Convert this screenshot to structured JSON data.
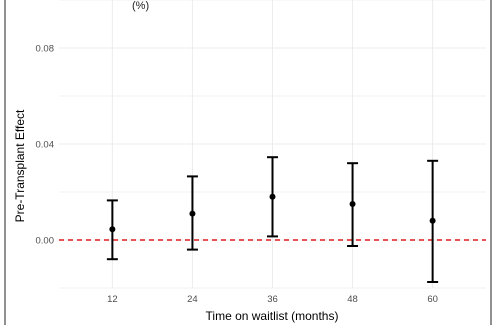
{
  "top_fragment": "(%)",
  "chart_data": {
    "type": "errorbar",
    "title": "",
    "xlabel": "Time on waitlist (months)",
    "ylabel": "Pre-Transplant Effect",
    "x": [
      12,
      24,
      36,
      48,
      60
    ],
    "xtick_labels": [
      "12",
      "24",
      "36",
      "48",
      "60"
    ],
    "xlim": [
      4,
      68
    ],
    "ylim": [
      -0.02,
      0.1
    ],
    "yticks": [
      0.0,
      0.04,
      0.08
    ],
    "ytick_labels": [
      "0.00",
      "0.04",
      "0.08"
    ],
    "series": [
      {
        "estimate": [
          0.0045,
          0.011,
          0.018,
          0.015,
          0.008
        ],
        "lower": [
          -0.008,
          -0.004,
          0.0015,
          -0.0025,
          -0.0175
        ],
        "upper": [
          0.0165,
          0.0265,
          0.0345,
          0.032,
          0.033
        ]
      }
    ],
    "reference_line": {
      "y": 0,
      "style": "dashed",
      "color": "#e41a1c"
    },
    "grid": true,
    "colors": {
      "points": "#000000",
      "errorbars": "#000000",
      "grid": "#ececec"
    }
  }
}
